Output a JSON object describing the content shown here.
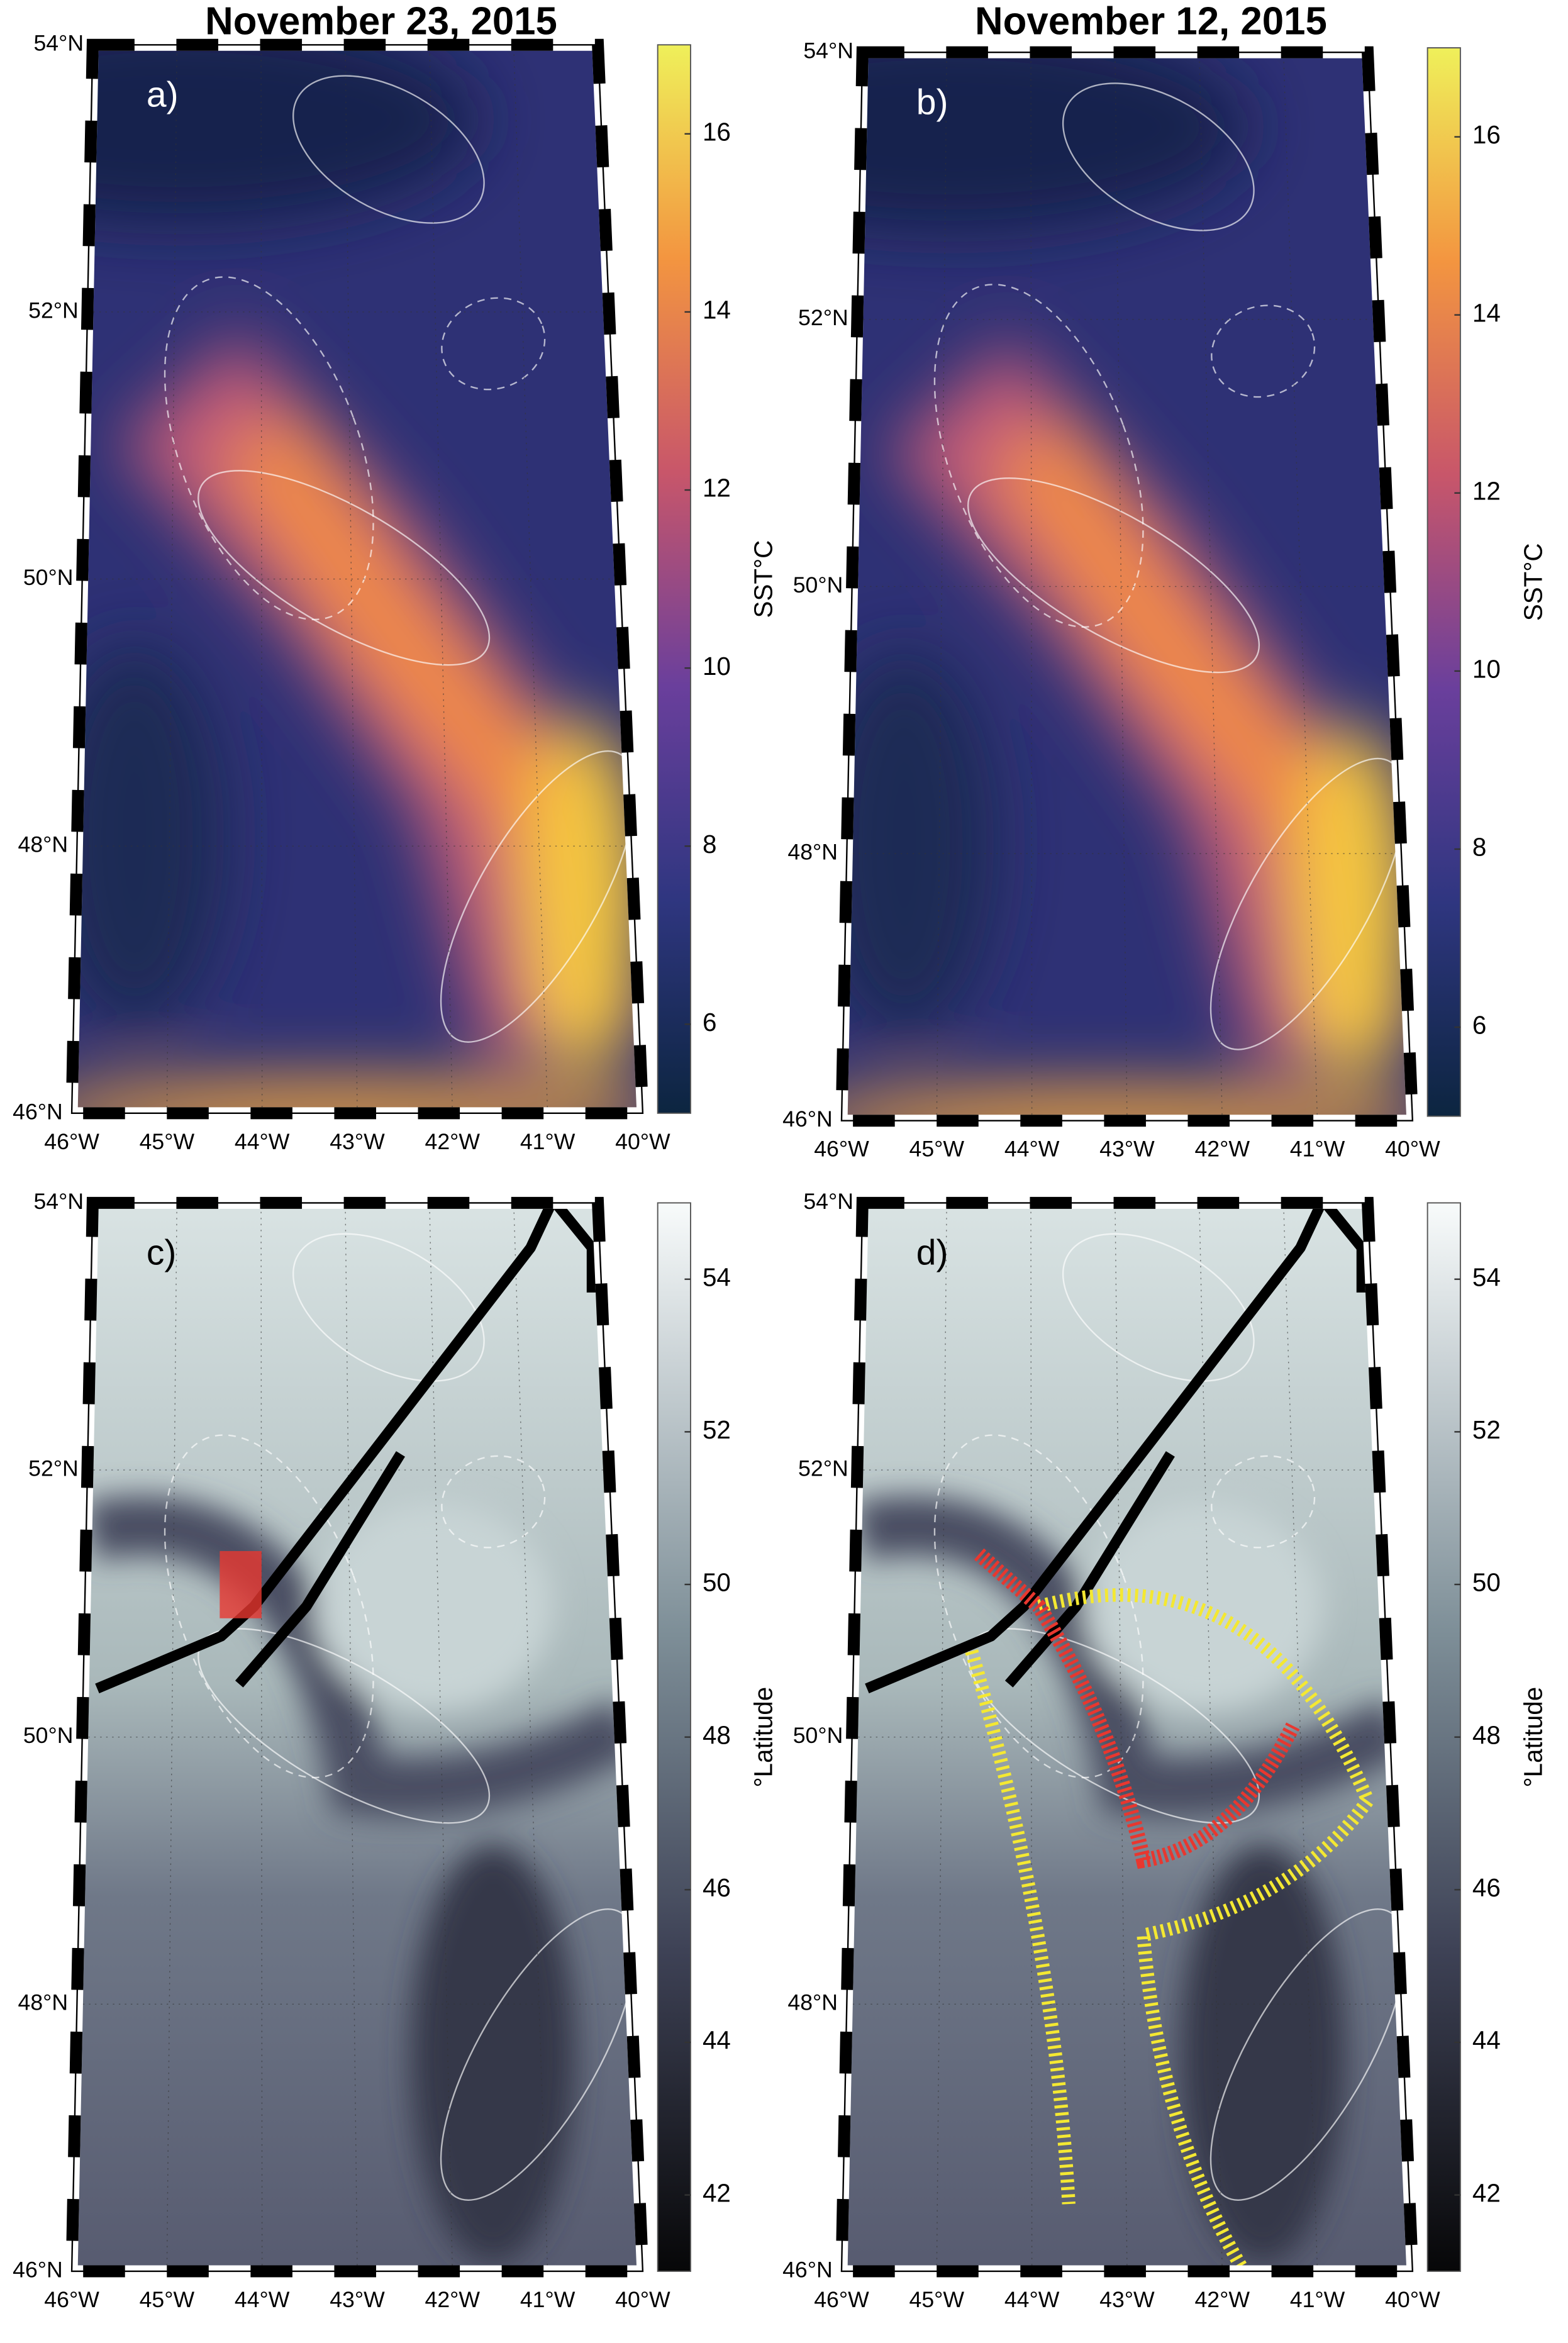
{
  "panels": [
    {
      "label": "a)",
      "title": "November 23, 2015",
      "colorbar": {
        "label": "SST°C",
        "lim": [
          5,
          17
        ],
        "ticks": [
          6,
          8,
          10,
          12,
          14,
          16
        ]
      }
    },
    {
      "label": "b)",
      "title": "November 12, 2015",
      "colorbar": {
        "label": "SST°C",
        "lim": [
          5,
          17
        ],
        "ticks": [
          6,
          8,
          10,
          12,
          14,
          16
        ]
      }
    },
    {
      "label": "c)",
      "colorbar": {
        "label": "°Latitude",
        "lim": [
          41,
          55
        ],
        "ticks": [
          42,
          44,
          46,
          48,
          50,
          52,
          54
        ]
      }
    },
    {
      "label": "d)",
      "colorbar": {
        "label": "°Latitude",
        "lim": [
          41,
          55
        ],
        "ticks": [
          42,
          44,
          46,
          48,
          50,
          52,
          54
        ]
      }
    }
  ],
  "lat_lim": [
    46,
    54
  ],
  "lon_lim": [
    -46,
    -40
  ],
  "lat_ticks": [
    {
      "value": 46,
      "label": "46°N"
    },
    {
      "value": 48,
      "label": "48°N"
    },
    {
      "value": 50,
      "label": "50°N"
    },
    {
      "value": 52,
      "label": "52°N"
    },
    {
      "value": 54,
      "label": "54°N"
    }
  ],
  "lon_ticks": [
    {
      "value": -46,
      "label": "46°W"
    },
    {
      "value": -45,
      "label": "45°W"
    },
    {
      "value": -44,
      "label": "44°W"
    },
    {
      "value": -43,
      "label": "43°W"
    },
    {
      "value": -42,
      "label": "42°W"
    },
    {
      "value": -41,
      "label": "41°W"
    },
    {
      "value": -40,
      "label": "40°W"
    }
  ]
}
